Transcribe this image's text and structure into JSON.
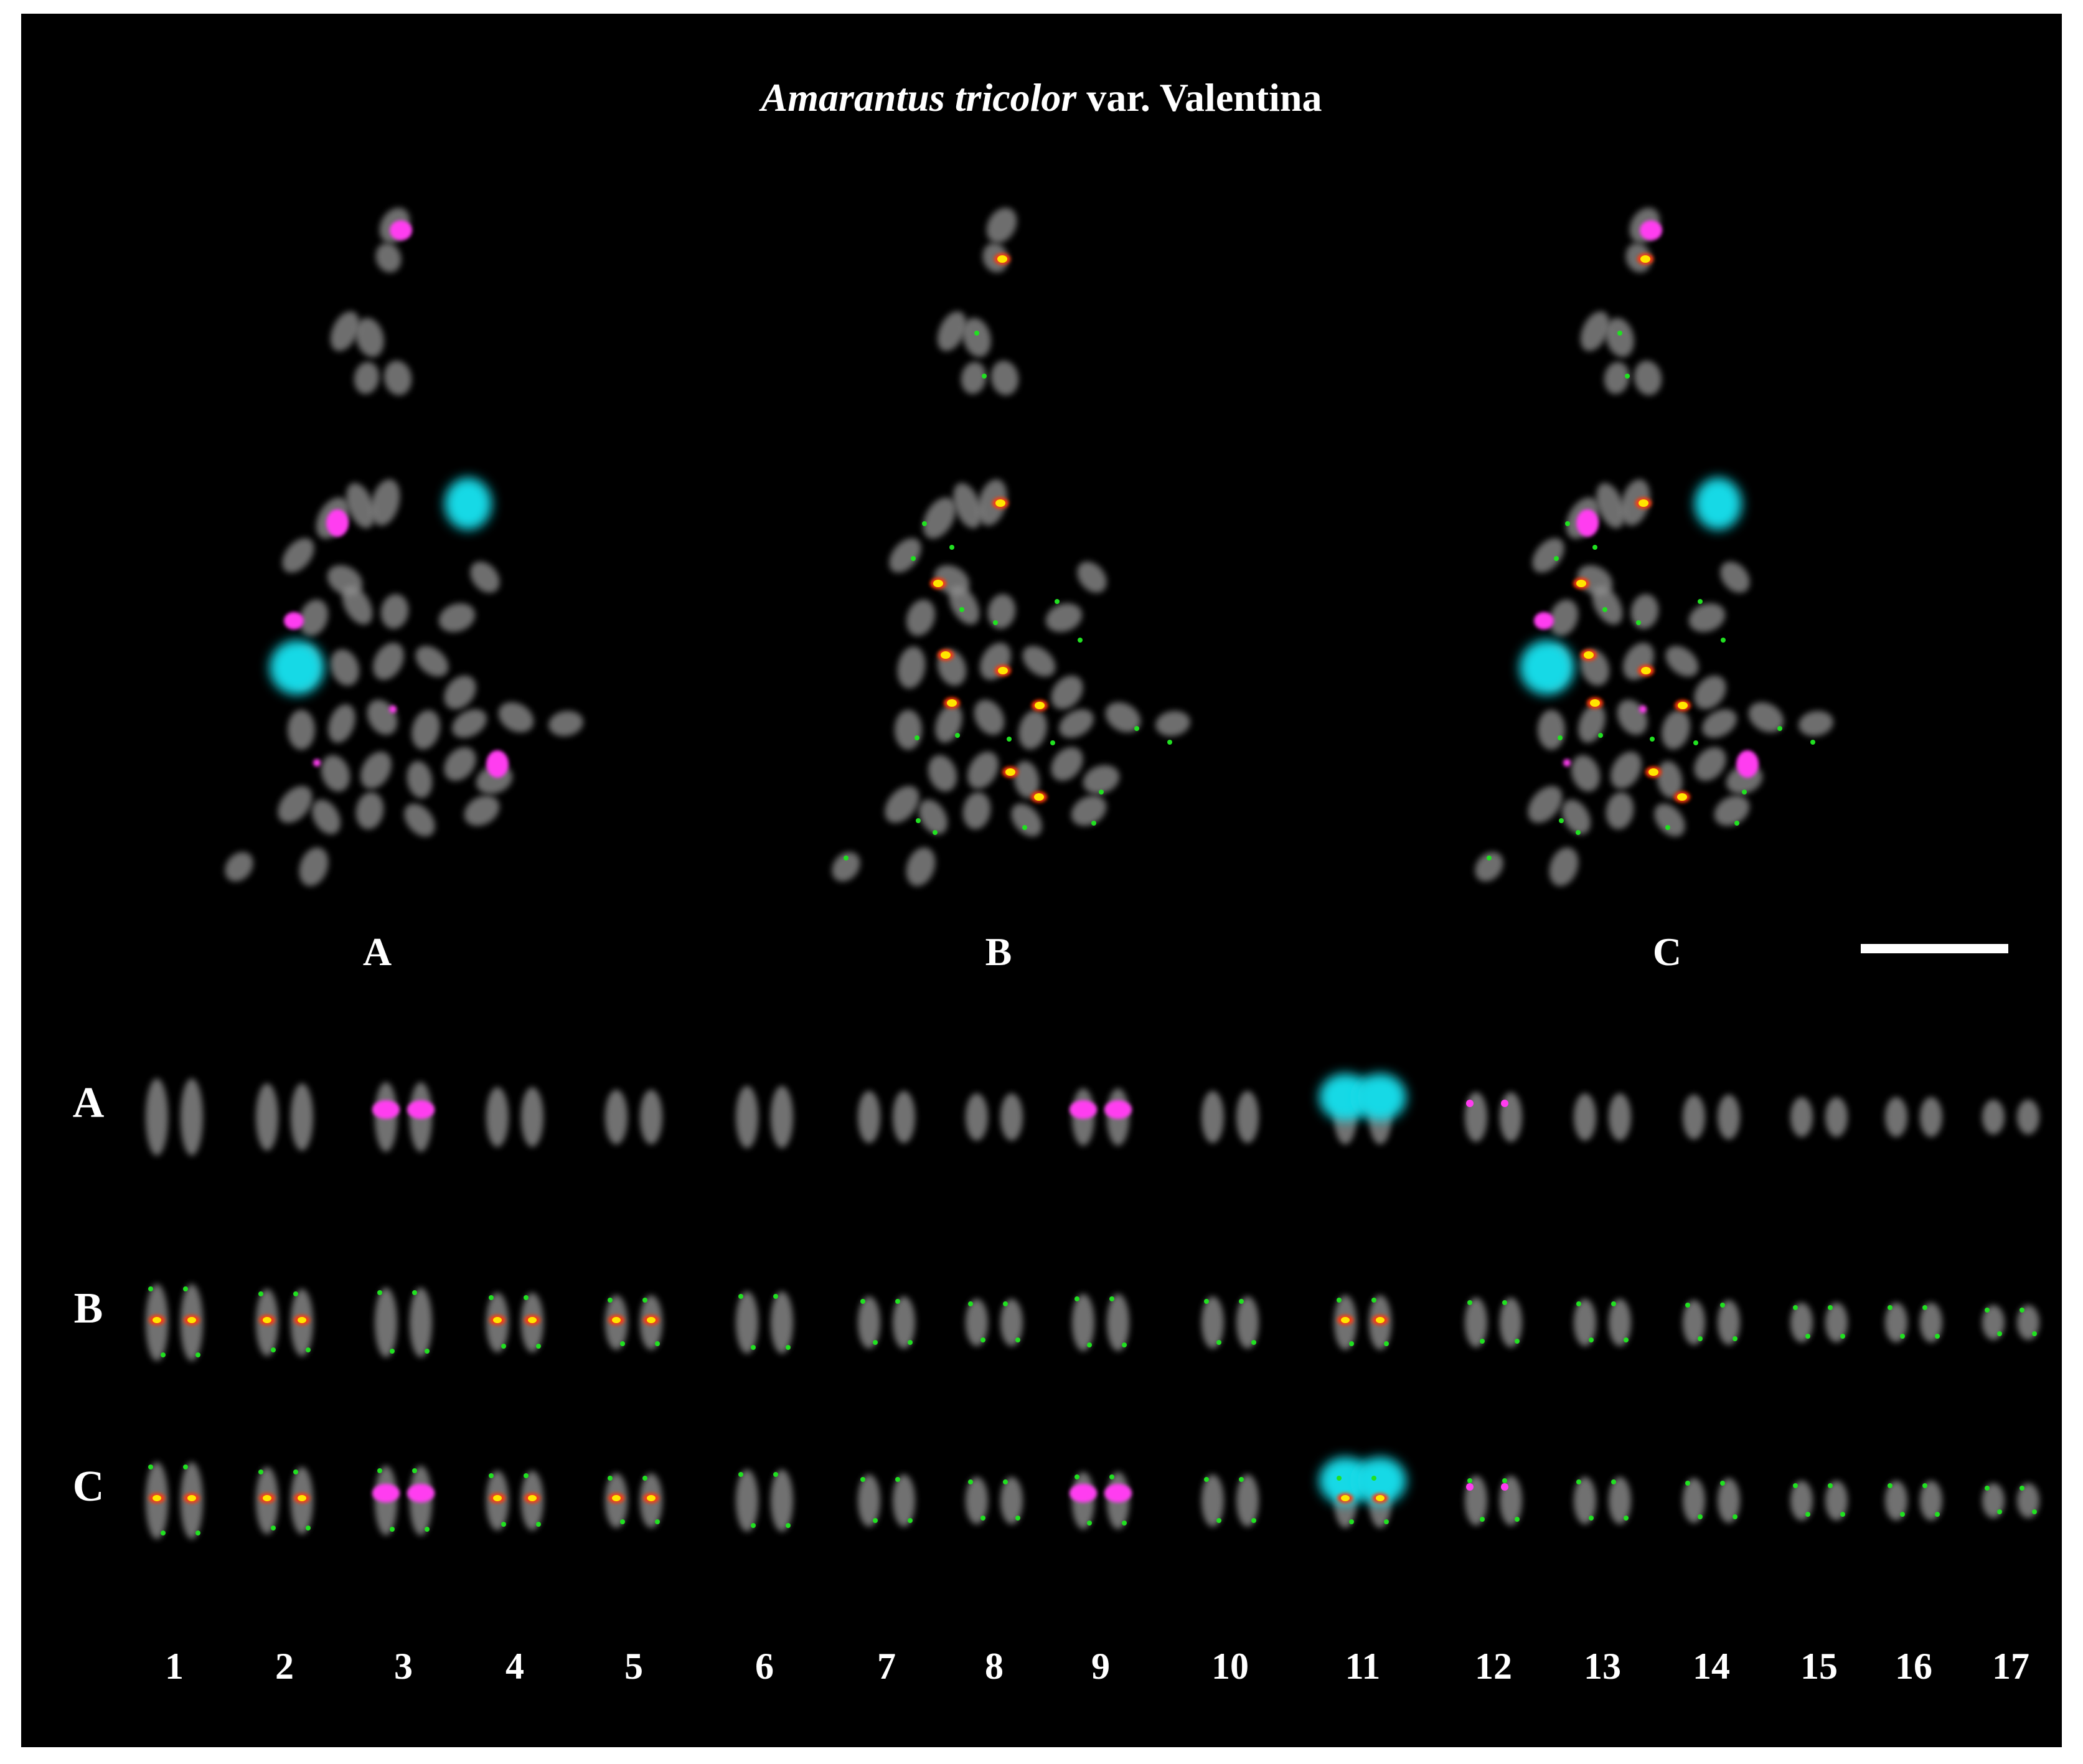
{
  "figure": {
    "title": {
      "italic": "Amarantus tricolor",
      "rest": " var. Valentina"
    },
    "panels": [
      "A",
      "B",
      "C"
    ],
    "karyotype_rows": [
      "A",
      "B",
      "C"
    ],
    "chromosome_numbers": [
      "1",
      "2",
      "3",
      "4",
      "5",
      "6",
      "7",
      "8",
      "9",
      "10",
      "11",
      "12",
      "13",
      "14",
      "15",
      "16",
      "17"
    ],
    "signal_colors": {
      "chromosome": "#8e8e8e",
      "magenta": "#ff3cf0",
      "cyan": "#19d9e6",
      "yellow": "#ffe600",
      "red": "#ff3a10",
      "green": "#21e021"
    },
    "scale_bar_color": "#ffffff",
    "background": "#000000"
  }
}
